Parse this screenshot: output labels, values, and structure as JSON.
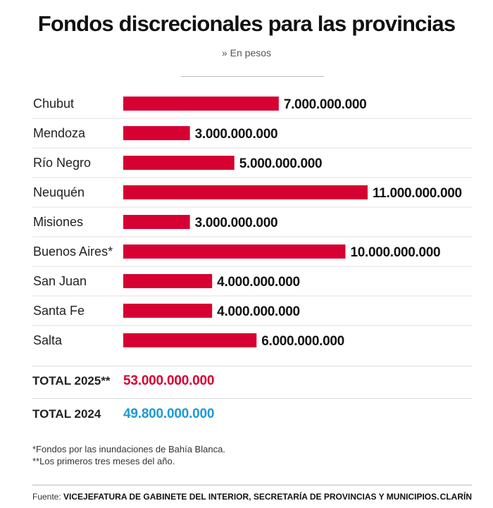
{
  "header": {
    "title": "Fondos discrecionales para las provincias",
    "subtitle": "» En pesos"
  },
  "colors": {
    "bar": "#d60032",
    "total_2025": "#d60032",
    "total_2024": "#1b9ad6"
  },
  "chart_data": {
    "type": "bar",
    "orientation": "horizontal",
    "title": "Fondos discrecionales para las provincias",
    "subtitle": "» En pesos",
    "categories": [
      "Chubut",
      "Mendoza",
      "Río Negro",
      "Neuquén",
      "Misiones",
      "Buenos Aires*",
      "San Juan",
      "Santa Fe",
      "Salta"
    ],
    "values": [
      7000000000,
      3000000000,
      5000000000,
      11000000000,
      3000000000,
      10000000000,
      4000000000,
      4000000000,
      6000000000
    ],
    "value_labels": [
      "7.000.000.000",
      "3.000.000.000",
      "5.000.000.000",
      "11.000.000.000",
      "3.000.000.000",
      "10.000.000.000",
      "4.000.000.000",
      "4.000.000.000",
      "6.000.000.000"
    ],
    "xlim": [
      0,
      11000000000
    ],
    "grid": false
  },
  "totals": [
    {
      "label": "TOTAL 2025**",
      "value": "53.000.000.000"
    },
    {
      "label": "TOTAL 2024",
      "value": "49.800.000.000"
    }
  ],
  "notes": [
    "*Fondos por las inundaciones de Bahía Blanca.",
    "**Los primeros tres meses del año."
  ],
  "footer": {
    "source_label": "Fuente:",
    "source_text": "VICEJEFATURA DE GABINETE DEL INTERIOR, SECRETARÍA DE PROVINCIAS Y MUNICIPIOS.",
    "brand": "CLARÍN"
  }
}
